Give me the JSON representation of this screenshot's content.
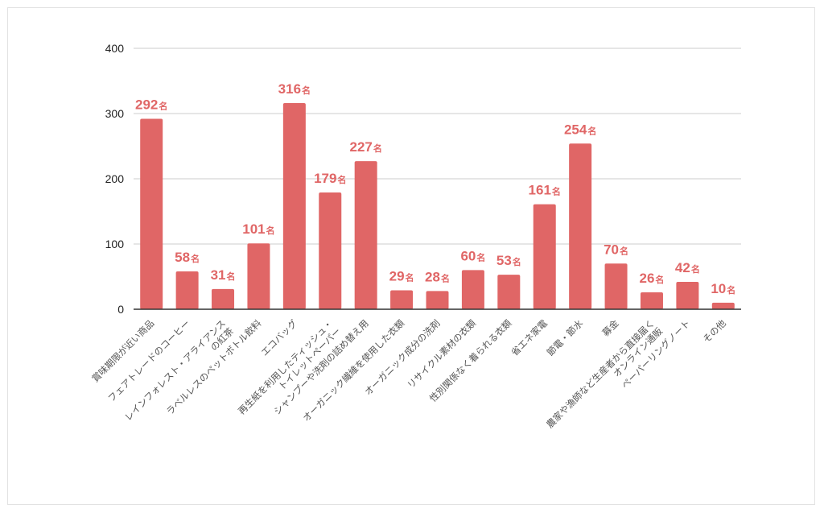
{
  "chart_data": {
    "type": "bar",
    "categories": [
      "賞味期限が近い商品",
      "フェアトレードのコーヒー",
      "レインフォレスト・アライアンス\nの紅茶",
      "ラベルレスのペットボトル飲料",
      "エコバッグ",
      "再生紙を利用したティッシュ・\nトイレットペーパー",
      "シャンプーや洗剤の詰め替え用",
      "オーガニック繊維を使用した衣類",
      "オーガニック成分の洗剤",
      "リサイクル素材の衣類",
      "性別関係なく着られる衣類",
      "省エネ家電",
      "節電・節水",
      "募金",
      "農家や漁師など生産者から直接届く\nオンライン通販",
      "ペーパーリングノート",
      "その他"
    ],
    "values": [
      292,
      58,
      31,
      101,
      316,
      179,
      227,
      29,
      28,
      60,
      53,
      161,
      254,
      70,
      26,
      42,
      10
    ],
    "value_unit": "名",
    "ylim": [
      0,
      400
    ],
    "yticks": [
      0,
      100,
      200,
      300,
      400
    ],
    "grid": true,
    "legend": "none",
    "title": "",
    "xlabel": "",
    "ylabel": ""
  },
  "colors": {
    "bar": "#e06666",
    "label": "#e06666",
    "grid": "#cccccc",
    "axis": "#333333",
    "tick_text": "#222222",
    "category_text": "#555555"
  }
}
